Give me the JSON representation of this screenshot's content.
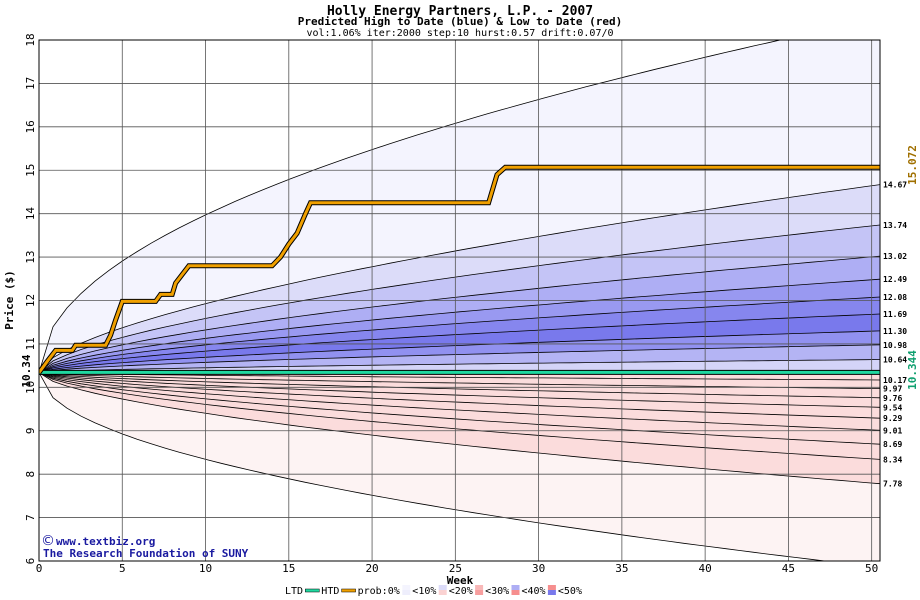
{
  "chart_data": {
    "type": "area",
    "title": "Holly Energy Partners, L.P. - 2007",
    "subtitle": "Predicted High to Date (blue) &  Low to Date (red)",
    "params": "vol:1.06% iter:2000 step:10 hurst:0.57 drift:0.07/0",
    "xlabel": "Week",
    "ylabel": "Price ($)",
    "xlim": [
      0,
      50.5
    ],
    "ylim": [
      6,
      18
    ],
    "x_ticks": [
      0,
      5,
      10,
      15,
      20,
      25,
      30,
      35,
      40,
      45,
      50
    ],
    "y_ticks": [
      6,
      7,
      8,
      9,
      10,
      11,
      12,
      13,
      14,
      15,
      16,
      17,
      18
    ],
    "grid": true,
    "start_price": 10.34,
    "start_label": "10.34",
    "htd_label": "15.072",
    "ltd_label": "10.344",
    "level_labels": [
      "14.67",
      "13.74",
      "13.02",
      "12.49",
      "12.08",
      "11.69",
      "11.30",
      "10.98",
      "10.64",
      "10.17",
      "9.97",
      "9.76",
      "9.54",
      "9.29",
      "9.01",
      "8.69",
      "8.34",
      "7.78"
    ],
    "upper_envelope": {
      "start": 10.34,
      "end": 18.5
    },
    "lower_envelope": {
      "start": 10.34,
      "end": 5.85
    },
    "high_bands": [
      {
        "end": 14.67,
        "color": "#dcdcf9"
      },
      {
        "end": 13.74,
        "color": "#c4c4f6"
      },
      {
        "end": 13.02,
        "color": "#aeaef4"
      },
      {
        "end": 12.49,
        "color": "#9999f1"
      },
      {
        "end": 12.08,
        "color": "#8686ee"
      },
      {
        "end": 11.69,
        "color": "#7979ec"
      },
      {
        "end": 11.3,
        "color": "#9191f0"
      },
      {
        "end": 10.98,
        "color": "#b4b4f4"
      },
      {
        "end": 10.64,
        "color": "#d4d4f8"
      },
      {
        "end": 10.17,
        "color": "#eeeefc"
      }
    ],
    "low_bands": [
      {
        "end": 9.97,
        "color": "#fbe8e8"
      },
      {
        "end": 9.76,
        "color": "#fad2d2"
      },
      {
        "end": 9.54,
        "color": "#f8b8b8"
      },
      {
        "end": 9.29,
        "color": "#f79e9e"
      },
      {
        "end": 9.01,
        "color": "#f68e8e"
      },
      {
        "end": 8.69,
        "color": "#f7a2a2"
      },
      {
        "end": 8.34,
        "color": "#f9c4c4"
      },
      {
        "end": 7.78,
        "color": "#fbdcdc"
      }
    ],
    "outer_high_color": "#f4f4fe",
    "outer_low_color": "#fdf3f3",
    "htd_series": {
      "name": "HTD",
      "color": "#f0a000",
      "x": [
        0,
        0.5,
        1,
        2,
        2.2,
        4,
        4.3,
        4.6,
        5,
        7,
        7.3,
        8,
        8.2,
        8.6,
        9,
        14,
        14.5,
        15,
        15.5,
        16,
        16.3,
        27,
        27.5,
        28,
        50.5
      ],
      "y": [
        10.34,
        10.6,
        10.85,
        10.85,
        10.97,
        10.97,
        11.2,
        11.55,
        11.98,
        11.98,
        12.14,
        12.14,
        12.4,
        12.6,
        12.8,
        12.8,
        13.0,
        13.3,
        13.55,
        14.0,
        14.25,
        14.25,
        14.9,
        15.07,
        15.07
      ]
    },
    "ltd_series": {
      "name": "LTD",
      "color": "#20d8a0",
      "x": [
        0,
        50.5
      ],
      "y": [
        10.344,
        10.344
      ]
    },
    "watermark": [
      "www.textbiz.org",
      "The Research Foundation of SUNY"
    ],
    "copyright_symbol": "©",
    "legend": {
      "ltd": "LTD",
      "htd": "HTD",
      "prob_prefix": "prob:0%",
      "items": [
        "<10%",
        "<20%",
        "<30%",
        "<40%",
        "<50%"
      ],
      "swatches": [
        "#f4f4fe",
        "#eeeefc",
        "#dcdcf9",
        "#fad2d2",
        "#f8b8b8",
        "#f79e9e",
        "#aeaef4",
        "#f68e8e",
        "#7979ec"
      ]
    }
  }
}
